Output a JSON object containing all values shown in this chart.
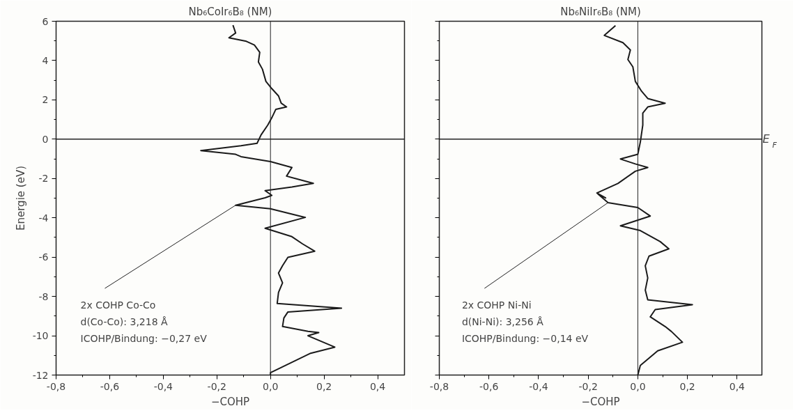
{
  "chart_data": [
    {
      "type": "line",
      "title": "Nb₆CoIr₆B₈ (NM)",
      "xlabel": "−COHP",
      "ylabel": "Energie (eV)",
      "xlim": [
        -0.8,
        0.5
      ],
      "ylim": [
        -12,
        6
      ],
      "xticks": [
        {
          "value": -0.8,
          "label": "-0,8"
        },
        {
          "value": -0.6,
          "label": "-0,6"
        },
        {
          "value": -0.4,
          "label": "-0,4"
        },
        {
          "value": -0.2,
          "label": "-0,2"
        },
        {
          "value": 0.0,
          "label": "0,0"
        },
        {
          "value": 0.2,
          "label": "0,2"
        },
        {
          "value": 0.4,
          "label": "0,4"
        }
      ],
      "yticks": [
        -12,
        -10,
        -8,
        -6,
        -4,
        -2,
        0,
        2,
        4,
        6
      ],
      "grid": false,
      "marker": "none",
      "line_style": "solid",
      "series": [
        {
          "color": "#1a1a1a",
          "x": [
            -0.14,
            -0.13,
            -0.155,
            -0.09,
            -0.06,
            -0.04,
            -0.045,
            -0.03,
            -0.017,
            0.005,
            0.03,
            0.04,
            0.06,
            0.02,
            0.005,
            -0.01,
            -0.035,
            -0.05,
            -0.11,
            -0.26,
            -0.13,
            -0.11,
            0.0,
            0.08,
            0.06,
            0.16,
            0.08,
            -0.02,
            0.005,
            -0.02,
            -0.13,
            0.0,
            0.13,
            -0.02,
            0.08,
            0.12,
            0.165,
            0.065,
            0.045,
            0.03,
            0.045,
            0.03,
            0.025,
            0.265,
            0.065,
            0.05,
            0.045,
            0.14,
            0.18,
            0.14,
            0.24,
            0.15,
            0.0,
            0.0
          ],
          "values": [
            5.8,
            5.4,
            5.16,
            4.98,
            4.79,
            4.42,
            3.93,
            3.56,
            2.94,
            2.57,
            2.2,
            1.83,
            1.64,
            1.52,
            1.09,
            0.72,
            0.22,
            -0.21,
            -0.33,
            -0.58,
            -0.77,
            -0.89,
            -1.14,
            -1.44,
            -1.88,
            -2.25,
            -2.43,
            -2.62,
            -2.86,
            -2.98,
            -3.36,
            -3.54,
            -3.98,
            -4.53,
            -4.96,
            -5.33,
            -5.7,
            -6.01,
            -6.44,
            -6.81,
            -7.31,
            -7.8,
            -8.36,
            -8.6,
            -8.79,
            -9.1,
            -9.53,
            -9.78,
            -9.84,
            -10.0,
            -10.58,
            -10.89,
            -11.88,
            -12.0
          ]
        }
      ],
      "ref_lines": [
        {
          "axis": "y",
          "value": 0
        },
        {
          "axis": "x",
          "value": 0
        }
      ],
      "annotations": [
        {
          "text": "2x COHP Co-Co\nd(Co-Co): 3,218 Å\nICOHP/Bindung: −0,27 eV",
          "x": -0.13,
          "y": -3.36
        }
      ]
    },
    {
      "type": "line",
      "title": "Nb₆NiIr₆B₈ (NM)",
      "xlabel": "−COHP",
      "xlim": [
        -0.8,
        0.5
      ],
      "ylim": [
        -12,
        6
      ],
      "xticks": [
        {
          "value": -0.8,
          "label": "-0,8"
        },
        {
          "value": -0.6,
          "label": "-0,6"
        },
        {
          "value": -0.4,
          "label": "-0,4"
        },
        {
          "value": -0.2,
          "label": "-0,2"
        },
        {
          "value": 0.0,
          "label": "0,0"
        },
        {
          "value": 0.2,
          "label": "0,2"
        },
        {
          "value": 0.4,
          "label": "0,4"
        }
      ],
      "yticks": [
        -12,
        -10,
        -8,
        -6,
        -4,
        -2,
        0,
        2,
        4,
        6
      ],
      "tick_labels": "x",
      "grid": false,
      "marker": "none",
      "line_style": "solid",
      "series": [
        {
          "color": "#1a1a1a",
          "x": [
            -0.09,
            -0.135,
            -0.06,
            -0.03,
            -0.04,
            -0.02,
            -0.01,
            0.015,
            0.04,
            0.11,
            0.04,
            0.02,
            0.02,
            0.01,
            0.0,
            -0.07,
            -0.01,
            0.04,
            -0.01,
            -0.08,
            -0.165,
            -0.13,
            -0.16,
            -0.12,
            0.0,
            0.05,
            -0.07,
            0.01,
            0.09,
            0.125,
            0.045,
            0.03,
            0.04,
            0.03,
            0.04,
            0.22,
            0.07,
            0.05,
            0.11,
            0.135,
            0.18,
            0.08,
            0.01,
            0.0
          ],
          "values": [
            5.78,
            5.28,
            4.91,
            4.54,
            4.05,
            3.68,
            2.94,
            2.44,
            2.07,
            1.83,
            1.64,
            1.33,
            0.72,
            -0.15,
            -0.77,
            -1.01,
            -1.26,
            -1.44,
            -1.63,
            -2.25,
            -2.74,
            -2.99,
            -2.8,
            -3.23,
            -3.48,
            -3.91,
            -4.41,
            -4.65,
            -5.21,
            -5.58,
            -5.95,
            -6.44,
            -7.06,
            -7.68,
            -8.17,
            -8.42,
            -8.67,
            -9.04,
            -9.53,
            -9.78,
            -10.33,
            -10.77,
            -11.51,
            -12.0
          ]
        }
      ],
      "ref_lines": [
        {
          "axis": "y",
          "value": 0,
          "label": "E$_{F}$"
        },
        {
          "axis": "x",
          "value": 0
        }
      ],
      "annotations": [
        {
          "text": "2x COHP Ni-Ni\nd(Ni-Ni): 3,256 Å\nICOHP/Bindung: −0,14 eV",
          "x": -0.12,
          "y": -3.23
        }
      ]
    }
  ]
}
